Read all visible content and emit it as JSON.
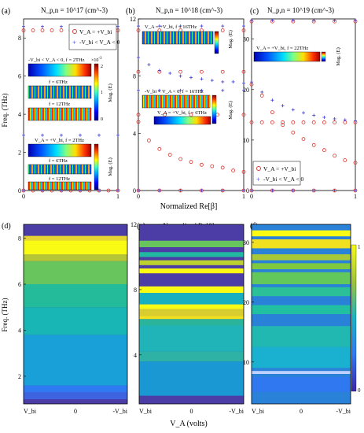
{
  "figure": {
    "top_xlabel": "Normalized Re[β]",
    "bottom_xlabel": "V_A (volts)",
    "ylabel": "Freq. (THz)",
    "colorbar_label": "Mag. (E)",
    "colorbar_exp": "×10",
    "colorbar_exp_power": "-3"
  },
  "legend": {
    "open_circle": "V_A = +V_bi",
    "plus": "-V_bi < V_A < 0"
  },
  "chart_data": [
    {
      "panel": "(a)",
      "type": "scatter",
      "title": "N_p,n = 10^17 (cm^-3)",
      "xlabel": "Normalized Re[β]",
      "ylabel": "Freq. (THz)",
      "xlim": [
        0,
        1
      ],
      "ylim": [
        0,
        9
      ],
      "xticks": [
        "0",
        "1"
      ],
      "yticks": [
        "0",
        "2",
        "4",
        "6",
        "8"
      ],
      "series": [
        {
          "name": "V_A = +V_bi",
          "marker": "circle",
          "color": "#e0302a",
          "x": [
            0,
            0.1,
            0.2,
            0.3,
            0.4,
            0.5,
            0.6,
            0.7,
            0.8,
            0.9,
            1,
            0,
            0.1,
            0.2,
            0.3,
            0.4,
            0.5,
            0.6,
            0.7,
            0.8,
            0.9,
            1
          ],
          "y": [
            8.4,
            8.4,
            8.4,
            8.4,
            8.4,
            8.4,
            8.4,
            8.4,
            8.4,
            8.4,
            8.4,
            0,
            0,
            0,
            0,
            0,
            0,
            0,
            0,
            0,
            0,
            0
          ]
        },
        {
          "name": "-V_bi < V_A < 0",
          "marker": "plus",
          "color": "#3d3dd6",
          "x": [
            0,
            0.2,
            0.4,
            0.6,
            0.8,
            1,
            0,
            0.2,
            0.4,
            0.6,
            0.8,
            1,
            0,
            0.2,
            0.4,
            0.6,
            0.8,
            1
          ],
          "y": [
            8.6,
            8.6,
            8.6,
            8.6,
            8.6,
            8.6,
            2.9,
            2.9,
            2.9,
            2.9,
            2.9,
            2.9,
            0,
            0,
            0,
            0,
            0,
            0
          ]
        }
      ],
      "insets": [
        {
          "title": "-V_bi < V_A < 0, f = 2THz"
        },
        {
          "title": "f = 6THz"
        },
        {
          "title": "f = 12THz"
        },
        {
          "title": "V_A = +V_bi, f = 2THz"
        },
        {
          "title": "f = 6THz"
        },
        {
          "title": "f = 12THz"
        }
      ],
      "colorbar_ticks": [
        "0",
        "1",
        "2"
      ]
    },
    {
      "panel": "(b)",
      "type": "scatter",
      "title": "N_p,n = 10^18 (cm^-3)",
      "xlabel": "Normalized Re[β]",
      "xlim": [
        0,
        1
      ],
      "ylim": [
        0,
        12
      ],
      "xticks": [
        "0",
        "1"
      ],
      "yticks": [
        "0",
        "4",
        "8",
        "12"
      ],
      "series": [
        {
          "name": "V_A = +V_bi",
          "marker": "circle",
          "color": "#e0302a",
          "x": [
            0,
            0.2,
            0.4,
            0.6,
            0.8,
            1,
            0,
            0.2,
            0.4,
            0.6,
            0.8,
            1,
            0,
            0.25,
            0.5,
            0.75,
            1,
            0,
            0.1,
            0.2,
            0.3,
            0.4,
            0.5,
            0.6,
            0.7,
            0.8,
            0.9,
            1,
            0,
            0.2,
            0.4,
            0.6,
            0.8,
            1
          ],
          "y": [
            11.2,
            11.2,
            11.2,
            11.2,
            11.2,
            11.2,
            8.3,
            8.3,
            8.3,
            8.3,
            8.3,
            8.3,
            5.3,
            5.3,
            5.3,
            5.3,
            5.3,
            4.8,
            3.5,
            2.9,
            2.5,
            2.2,
            2.0,
            1.8,
            1.7,
            1.6,
            1.4,
            1.3,
            0,
            0,
            0,
            0,
            0,
            0
          ]
        },
        {
          "name": "-V_bi < V_A < 0",
          "marker": "plus",
          "color": "#3d3dd6",
          "x": [
            0,
            0.2,
            0.4,
            0.6,
            0.8,
            1,
            0,
            0.1,
            0.2,
            0.3,
            0.4,
            0.5,
            0.6,
            0.7,
            0.8,
            0.9,
            1,
            0,
            0.2,
            0.4,
            0.6,
            0.8,
            1,
            0,
            0.2,
            0.4,
            0.6,
            0.8,
            1
          ],
          "y": [
            11.5,
            11.5,
            11.5,
            11.5,
            11.5,
            11.5,
            9.3,
            8.8,
            8.4,
            8.2,
            8.0,
            7.9,
            7.8,
            7.7,
            7.6,
            7.6,
            7.5,
            7.0,
            7.0,
            7.0,
            7.0,
            7.0,
            7.0,
            0,
            0,
            0,
            0,
            0,
            0
          ]
        }
      ],
      "insets": [
        {
          "title": "V_A = +V_bi, f = 16THz"
        },
        {
          "title": "-V_bi < V_A < 0, f = 16THz"
        },
        {
          "title": "V_A = +V_bi, f = 6THz"
        }
      ],
      "colorbar_ticks": [
        "0",
        "1",
        "2"
      ]
    },
    {
      "panel": "(c)",
      "type": "scatter",
      "title": "N_p,n = 10^19 (cm^-3)",
      "xlabel": "Normalized Re[β]",
      "xlim": [
        0,
        1
      ],
      "ylim": [
        0,
        34
      ],
      "xticks": [
        "0",
        "1"
      ],
      "yticks": [
        "0",
        "10",
        "20",
        "30"
      ],
      "series": [
        {
          "name": "V_A = +V_bi",
          "marker": "circle",
          "color": "#e0302a",
          "x": [
            0,
            0.2,
            0.4,
            0.6,
            0.8,
            1,
            0,
            0.1,
            0.2,
            0.3,
            0.4,
            0.5,
            0.6,
            0.7,
            0.8,
            0.9,
            1,
            0,
            0.1,
            0.2,
            0.3,
            0.4,
            0.5,
            0.6,
            0.7,
            0.8,
            0.9,
            1,
            0,
            0.2,
            0.4,
            0.6,
            0.8,
            1
          ],
          "y": [
            33.5,
            33.5,
            33.5,
            33.5,
            33.5,
            33.5,
            13.5,
            13.5,
            13.5,
            13.5,
            13.5,
            13.5,
            13.5,
            13.5,
            13.5,
            13.5,
            13.5,
            21,
            18.8,
            15.5,
            13,
            11.5,
            10.2,
            9,
            8,
            6.9,
            6,
            5.5,
            0,
            0,
            0,
            0,
            0,
            0
          ]
        },
        {
          "name": "-V_bi < V_A < 0",
          "marker": "plus",
          "color": "#3d3dd6",
          "x": [
            0,
            0.2,
            0.4,
            0.6,
            0.8,
            1,
            0,
            0.1,
            0.2,
            0.3,
            0.4,
            0.5,
            0.6,
            0.7,
            0.8,
            0.9,
            1,
            0,
            0.2,
            0.4,
            0.6,
            0.8,
            1
          ],
          "y": [
            33.7,
            33.7,
            33.7,
            33.7,
            33.7,
            33.7,
            21.5,
            19.5,
            17.9,
            16.8,
            16,
            15.4,
            14.9,
            14.5,
            14.2,
            14,
            13.8,
            0,
            0,
            0,
            0,
            0,
            0
          ]
        }
      ],
      "insets": [
        {
          "title": "V_A = +V_bi, f = 22THz"
        }
      ],
      "colorbar_ticks": [
        "0",
        "1",
        "2"
      ]
    },
    {
      "panel": "(d)",
      "type": "heatmap",
      "xlabel": "V_A (volts)",
      "ylabel": "Freq. (THz)",
      "xticks": [
        "V_bi",
        "0",
        "-V_bi"
      ],
      "yticks": [
        "2",
        "4",
        "6",
        "8"
      ],
      "ylim": [
        0.8,
        8.6
      ]
    },
    {
      "panel": "(e)",
      "type": "heatmap",
      "title": "Normalized Re[β]",
      "xticks": [
        "V_bi",
        "0",
        "-V_bi"
      ],
      "yticks": [
        "4",
        "8",
        "12"
      ],
      "ylim": [
        1,
        12
      ]
    },
    {
      "panel": "(f)",
      "type": "heatmap",
      "xticks": [
        "V_bi",
        "0",
        "-V_bi"
      ],
      "yticks": [
        "10",
        "20",
        "30"
      ],
      "ylim": [
        3,
        33
      ],
      "colorbar_ticks": [
        "0",
        "1"
      ]
    }
  ]
}
